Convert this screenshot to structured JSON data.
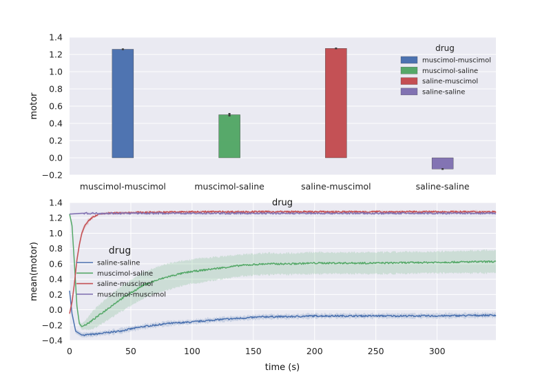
{
  "chart_data": [
    {
      "type": "bar",
      "ylabel": "motor",
      "xlabel": "drug",
      "ylim": [
        -0.2,
        1.4
      ],
      "yticks": [
        "−0.2",
        "0.0",
        "0.2",
        "0.4",
        "0.6",
        "0.8",
        "1.0",
        "1.2",
        "1.4"
      ],
      "categories": [
        "muscimol-muscimol",
        "muscimol-saline",
        "saline-muscimol",
        "saline-saline"
      ],
      "series": [
        {
          "name": "muscimol-muscimol",
          "color": "#4c72b0",
          "values": [
            1.26,
            null,
            null,
            null
          ],
          "errors": [
            0.01,
            null,
            null,
            null
          ]
        },
        {
          "name": "muscimol-saline",
          "color": "#55a868",
          "values": [
            null,
            0.5,
            null,
            null
          ],
          "errors": [
            null,
            0.02,
            null,
            null
          ]
        },
        {
          "name": "saline-muscimol",
          "color": "#c44e52",
          "values": [
            null,
            null,
            1.27,
            null
          ],
          "errors": [
            null,
            null,
            0.01,
            null
          ]
        },
        {
          "name": "saline-saline",
          "color": "#8172b2",
          "values": [
            null,
            null,
            null,
            -0.13
          ],
          "errors": [
            null,
            null,
            null,
            0.01
          ]
        }
      ],
      "legend": {
        "title": "drug",
        "position": "top-right"
      },
      "grid": true
    },
    {
      "type": "line",
      "xlabel": "time (s)",
      "ylabel": "mean(motor)",
      "xlim": [
        0,
        348
      ],
      "ylim": [
        -0.4,
        1.4
      ],
      "xticks": [
        "0",
        "50",
        "100",
        "150",
        "200",
        "250",
        "300"
      ],
      "yticks": [
        "−0.4",
        "−0.2",
        "0.0",
        "0.2",
        "0.4",
        "0.6",
        "0.8",
        "1.0",
        "1.2",
        "1.4"
      ],
      "legend": {
        "title": "drug",
        "position": "center-left"
      },
      "grid": true,
      "series": [
        {
          "name": "saline-saline",
          "color": "#4c72b0",
          "x": [
            0,
            2,
            5,
            10,
            20,
            30,
            40,
            50,
            60,
            70,
            80,
            90,
            100,
            120,
            140,
            160,
            180,
            200,
            250,
            300,
            348
          ],
          "y": [
            0.25,
            -0.05,
            -0.28,
            -0.33,
            -0.32,
            -0.3,
            -0.28,
            -0.25,
            -0.22,
            -0.2,
            -0.18,
            -0.17,
            -0.16,
            -0.13,
            -0.11,
            -0.09,
            -0.09,
            -0.08,
            -0.08,
            -0.08,
            -0.07
          ],
          "ci": [
            0.02,
            0.04,
            0.03,
            0.03,
            0.03,
            0.03,
            0.03,
            0.03,
            0.03,
            0.03,
            0.03,
            0.03,
            0.03,
            0.03,
            0.03,
            0.03,
            0.03,
            0.03,
            0.03,
            0.03,
            0.03
          ]
        },
        {
          "name": "muscimol-saline",
          "color": "#55a868",
          "x": [
            0,
            2,
            4,
            6,
            8,
            10,
            15,
            20,
            30,
            40,
            50,
            60,
            70,
            80,
            90,
            100,
            120,
            140,
            160,
            180,
            200,
            250,
            300,
            348
          ],
          "y": [
            1.25,
            1.1,
            0.6,
            0.05,
            -0.18,
            -0.22,
            -0.18,
            -0.12,
            0.0,
            0.12,
            0.22,
            0.32,
            0.38,
            0.43,
            0.47,
            0.5,
            0.54,
            0.58,
            0.6,
            0.6,
            0.61,
            0.61,
            0.62,
            0.63
          ],
          "ci": [
            0.02,
            0.05,
            0.1,
            0.05,
            0.03,
            0.04,
            0.08,
            0.12,
            0.15,
            0.16,
            0.17,
            0.17,
            0.17,
            0.17,
            0.16,
            0.16,
            0.15,
            0.14,
            0.14,
            0.14,
            0.14,
            0.14,
            0.14,
            0.15
          ]
        },
        {
          "name": "saline-muscimol",
          "color": "#c44e52",
          "x": [
            0,
            2,
            4,
            6,
            8,
            10,
            12,
            15,
            18,
            20,
            25,
            30,
            50,
            100,
            150,
            200,
            250,
            300,
            348
          ],
          "y": [
            -0.05,
            0.1,
            0.35,
            0.65,
            0.85,
            1.0,
            1.08,
            1.15,
            1.2,
            1.22,
            1.25,
            1.26,
            1.27,
            1.28,
            1.28,
            1.28,
            1.28,
            1.28,
            1.28
          ],
          "ci": [
            0.03,
            0.05,
            0.05,
            0.05,
            0.05,
            0.04,
            0.04,
            0.03,
            0.02,
            0.02,
            0.01,
            0.01,
            0.01,
            0.01,
            0.01,
            0.01,
            0.01,
            0.01,
            0.01
          ]
        },
        {
          "name": "muscimol-muscimol",
          "color": "#8172b2",
          "x": [
            0,
            10,
            50,
            100,
            150,
            200,
            250,
            300,
            348
          ],
          "y": [
            1.25,
            1.26,
            1.26,
            1.26,
            1.26,
            1.26,
            1.26,
            1.26,
            1.26
          ],
          "ci": [
            0.01,
            0.01,
            0.01,
            0.01,
            0.01,
            0.01,
            0.01,
            0.01,
            0.01
          ]
        }
      ]
    }
  ]
}
